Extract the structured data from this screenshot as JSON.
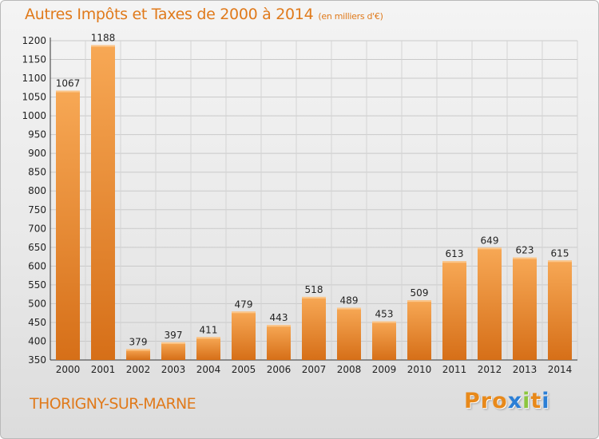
{
  "header": {
    "title": "Autres Impôts et Taxes de 2000 à 2014",
    "unit": "(en milliers d'€)"
  },
  "footer": {
    "city": "THORIGNY-SUR-MARNE",
    "logo": [
      "P",
      "r",
      "o",
      "x",
      "i",
      "t",
      "i"
    ]
  },
  "colors": {
    "accent": "#e07a1b",
    "bar_light": "#f7a855",
    "bar_dark": "#d66f18",
    "logo": [
      "#e8891a",
      "#e8891a",
      "#e8891a",
      "#2b7fd6",
      "#8cc63e",
      "#e8891a",
      "#2b7fd6"
    ]
  },
  "chart_data": {
    "type": "bar",
    "title": "Autres Impôts et Taxes de 2000 à 2014",
    "subtitle": "(en milliers d'€)",
    "categories": [
      "2000",
      "2001",
      "2002",
      "2003",
      "2004",
      "2005",
      "2006",
      "2007",
      "2008",
      "2009",
      "2010",
      "2011",
      "2012",
      "2013",
      "2014"
    ],
    "values": [
      1067,
      1188,
      379,
      397,
      411,
      479,
      443,
      518,
      489,
      453,
      509,
      613,
      649,
      623,
      615
    ],
    "ylim": [
      350,
      1200
    ],
    "yticks": [
      350,
      400,
      450,
      500,
      550,
      600,
      650,
      700,
      750,
      800,
      850,
      900,
      950,
      1000,
      1050,
      1100,
      1150,
      1200
    ],
    "grid": true
  }
}
